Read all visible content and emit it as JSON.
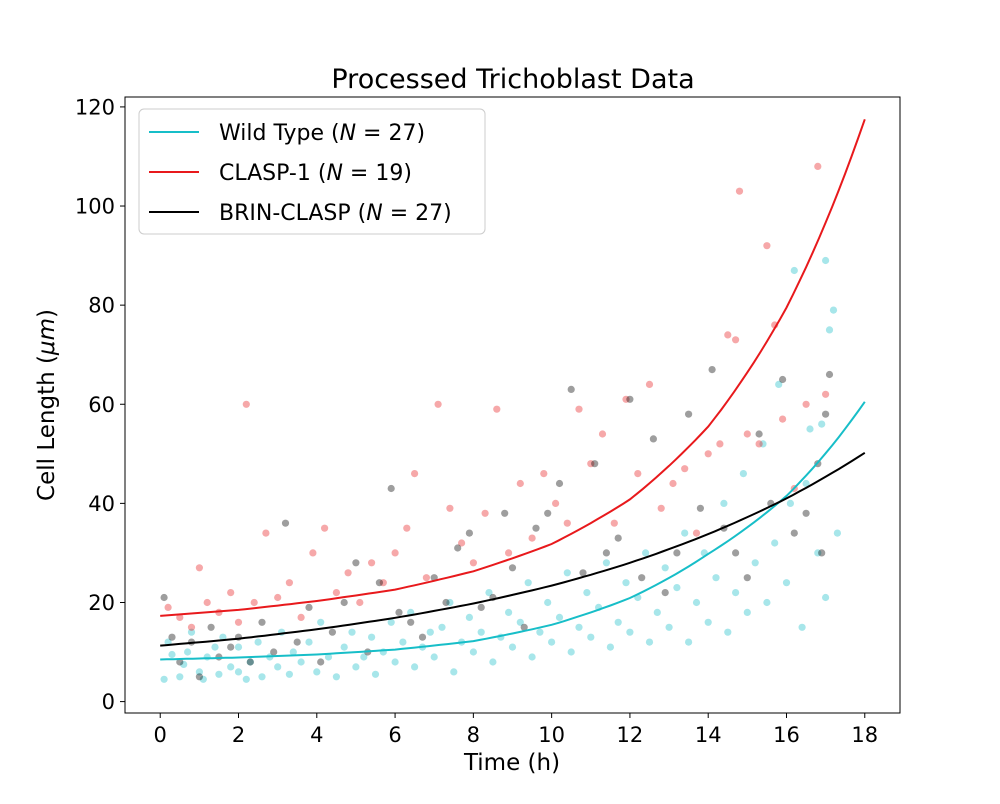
{
  "chart_data": {
    "type": "scatter",
    "title": "Processed Trichoblast Data",
    "xlabel": "Time (h)",
    "ylabel_prefix": "Cell Length (",
    "ylabel_unit": "μm",
    "ylabel_suffix": ")",
    "xlim": [
      -0.9,
      18.9
    ],
    "ylim": [
      -2.3,
      122.0
    ],
    "xticks": [
      0,
      2,
      4,
      6,
      8,
      10,
      12,
      14,
      16,
      18
    ],
    "yticks": [
      0,
      20,
      40,
      60,
      80,
      100,
      120
    ],
    "grid": false,
    "legend_position": "top-left",
    "fit_curves": [
      {
        "name_prefix": "Wild Type (",
        "name_var": "N",
        "name_eq": " = 27)",
        "color": "#17bec8",
        "model": "exponential",
        "x": [
          0,
          2,
          4,
          6,
          8,
          10,
          12,
          14,
          16,
          18
        ],
        "y": [
          8.5,
          8.9,
          9.5,
          10.5,
          12.2,
          15.5,
          20.9,
          29.8,
          41.5,
          60.5
        ]
      },
      {
        "name_prefix": "CLASP-1 (",
        "name_var": "N",
        "name_eq": " = 19)",
        "color": "#e8191c",
        "model": "exponential",
        "x": [
          0,
          2,
          4,
          6,
          8,
          10,
          12,
          14,
          16,
          18
        ],
        "y": [
          17.3,
          18.5,
          20.3,
          22.6,
          26.3,
          31.8,
          40.8,
          55.5,
          79.5,
          117.5
        ]
      },
      {
        "name_prefix": "BRIN-CLASP (",
        "name_var": "N",
        "name_eq": " = 27)",
        "color": "#000000",
        "model": "exponential",
        "x": [
          0,
          2,
          4,
          6,
          8,
          10,
          12,
          14,
          16,
          18
        ],
        "y": [
          11.3,
          12.7,
          14.6,
          16.9,
          19.8,
          23.4,
          28.0,
          33.8,
          41.0,
          50.2
        ]
      }
    ],
    "scatter_series": [
      {
        "group": "Wild Type",
        "color": "#17bec8",
        "points": [
          [
            0.1,
            4.5
          ],
          [
            0.2,
            12
          ],
          [
            0.3,
            9.5
          ],
          [
            0.5,
            5
          ],
          [
            0.6,
            7.5
          ],
          [
            0.7,
            10
          ],
          [
            0.8,
            14
          ],
          [
            1,
            6
          ],
          [
            1.1,
            4.5
          ],
          [
            1.2,
            9
          ],
          [
            1.4,
            11
          ],
          [
            1.5,
            5.5
          ],
          [
            1.6,
            13
          ],
          [
            1.8,
            7
          ],
          [
            2,
            6
          ],
          [
            2,
            11
          ],
          [
            2.2,
            4.5
          ],
          [
            2.3,
            8
          ],
          [
            2.5,
            12
          ],
          [
            2.6,
            5
          ],
          [
            2.8,
            9
          ],
          [
            3,
            7
          ],
          [
            3.1,
            14
          ],
          [
            3.3,
            5.5
          ],
          [
            3.4,
            10
          ],
          [
            3.6,
            8
          ],
          [
            3.8,
            12
          ],
          [
            4,
            6
          ],
          [
            4.1,
            16
          ],
          [
            4.3,
            9
          ],
          [
            4.5,
            5
          ],
          [
            4.7,
            11
          ],
          [
            4.9,
            14
          ],
          [
            5,
            7
          ],
          [
            5.2,
            9
          ],
          [
            5.4,
            13
          ],
          [
            5.5,
            5.5
          ],
          [
            5.7,
            10
          ],
          [
            5.9,
            16
          ],
          [
            6,
            8
          ],
          [
            6.2,
            12
          ],
          [
            6.4,
            18
          ],
          [
            6.5,
            7
          ],
          [
            6.7,
            11
          ],
          [
            6.9,
            14
          ],
          [
            7,
            9
          ],
          [
            7.2,
            15
          ],
          [
            7.4,
            20
          ],
          [
            7.5,
            6
          ],
          [
            7.7,
            12
          ],
          [
            7.9,
            17
          ],
          [
            8,
            10
          ],
          [
            8.2,
            14
          ],
          [
            8.4,
            22
          ],
          [
            8.5,
            8
          ],
          [
            8.7,
            13
          ],
          [
            8.9,
            18
          ],
          [
            9,
            11
          ],
          [
            9.2,
            16
          ],
          [
            9.4,
            24
          ],
          [
            9.5,
            9
          ],
          [
            9.7,
            14
          ],
          [
            9.9,
            20
          ],
          [
            10,
            12
          ],
          [
            10.2,
            17
          ],
          [
            10.4,
            26
          ],
          [
            10.5,
            10
          ],
          [
            10.7,
            15
          ],
          [
            10.9,
            22
          ],
          [
            11,
            13
          ],
          [
            11.2,
            19
          ],
          [
            11.4,
            28
          ],
          [
            11.5,
            11
          ],
          [
            11.7,
            16
          ],
          [
            11.9,
            24
          ],
          [
            12,
            14
          ],
          [
            12.2,
            21
          ],
          [
            12.4,
            30
          ],
          [
            12.5,
            12
          ],
          [
            12.7,
            18
          ],
          [
            12.9,
            27
          ],
          [
            13,
            15
          ],
          [
            13.2,
            23
          ],
          [
            13.4,
            34
          ],
          [
            13.5,
            12
          ],
          [
            13.7,
            20
          ],
          [
            13.9,
            30
          ],
          [
            14,
            16
          ],
          [
            14.2,
            25
          ],
          [
            14.4,
            40
          ],
          [
            14.5,
            14
          ],
          [
            14.7,
            22
          ],
          [
            14.9,
            46
          ],
          [
            15,
            18
          ],
          [
            15.2,
            28
          ],
          [
            15.4,
            52
          ],
          [
            15.5,
            20
          ],
          [
            15.7,
            32
          ],
          [
            15.8,
            64
          ],
          [
            16,
            24
          ],
          [
            16.1,
            40
          ],
          [
            16.2,
            87
          ],
          [
            16.4,
            15
          ],
          [
            16.5,
            44
          ],
          [
            16.6,
            55
          ],
          [
            16.8,
            30
          ],
          [
            16.9,
            56
          ],
          [
            17,
            89
          ],
          [
            17,
            21
          ],
          [
            17.1,
            75
          ],
          [
            17.2,
            79
          ],
          [
            17.3,
            34
          ]
        ]
      },
      {
        "group": "CLASP-1",
        "color": "#e8191c",
        "points": [
          [
            0.2,
            19
          ],
          [
            0.5,
            17
          ],
          [
            0.8,
            15
          ],
          [
            1,
            27
          ],
          [
            1.2,
            20
          ],
          [
            1.5,
            18
          ],
          [
            1.8,
            22
          ],
          [
            2,
            16
          ],
          [
            2.2,
            60
          ],
          [
            2.4,
            20
          ],
          [
            2.7,
            34
          ],
          [
            3,
            21
          ],
          [
            3.3,
            24
          ],
          [
            3.6,
            17
          ],
          [
            3.9,
            30
          ],
          [
            4.2,
            35
          ],
          [
            4.5,
            22
          ],
          [
            4.8,
            26
          ],
          [
            5.1,
            20
          ],
          [
            5.4,
            28
          ],
          [
            5.7,
            24
          ],
          [
            6,
            30
          ],
          [
            6.3,
            35
          ],
          [
            6.5,
            46
          ],
          [
            6.8,
            25
          ],
          [
            7.1,
            60
          ],
          [
            7.4,
            39
          ],
          [
            7.7,
            32
          ],
          [
            8,
            28
          ],
          [
            8.3,
            38
          ],
          [
            8.6,
            59
          ],
          [
            8.9,
            30
          ],
          [
            9.2,
            44
          ],
          [
            9.5,
            33
          ],
          [
            9.8,
            46
          ],
          [
            10.1,
            40
          ],
          [
            10.4,
            36
          ],
          [
            10.7,
            59
          ],
          [
            11,
            48
          ],
          [
            11.3,
            54
          ],
          [
            11.6,
            36
          ],
          [
            11.9,
            61
          ],
          [
            12.2,
            46
          ],
          [
            12.5,
            64
          ],
          [
            12.8,
            39
          ],
          [
            13.1,
            44
          ],
          [
            13.4,
            47
          ],
          [
            13.7,
            34
          ],
          [
            14,
            50
          ],
          [
            14.3,
            52
          ],
          [
            14.5,
            74
          ],
          [
            14.7,
            73
          ],
          [
            14.8,
            103
          ],
          [
            15,
            54
          ],
          [
            15.3,
            52
          ],
          [
            15.5,
            92
          ],
          [
            15.7,
            76
          ],
          [
            15.9,
            57
          ],
          [
            16.2,
            43
          ],
          [
            16.5,
            60
          ],
          [
            16.8,
            108
          ],
          [
            17,
            62
          ]
        ]
      },
      {
        "group": "BRIN-CLASP",
        "color": "#000000",
        "points": [
          [
            0.1,
            21
          ],
          [
            0.3,
            13
          ],
          [
            0.5,
            8
          ],
          [
            0.8,
            12
          ],
          [
            1,
            5
          ],
          [
            1.3,
            15
          ],
          [
            1.5,
            9
          ],
          [
            1.8,
            11
          ],
          [
            2,
            13
          ],
          [
            2.3,
            8
          ],
          [
            2.6,
            16
          ],
          [
            2.9,
            10
          ],
          [
            3.2,
            36
          ],
          [
            3.5,
            12
          ],
          [
            3.8,
            19
          ],
          [
            4.1,
            8
          ],
          [
            4.4,
            14
          ],
          [
            4.7,
            20
          ],
          [
            5,
            28
          ],
          [
            5.3,
            10
          ],
          [
            5.6,
            24
          ],
          [
            5.9,
            43
          ],
          [
            6.1,
            18
          ],
          [
            6.4,
            16
          ],
          [
            6.7,
            13
          ],
          [
            7,
            25
          ],
          [
            7.3,
            20
          ],
          [
            7.6,
            31
          ],
          [
            7.9,
            34
          ],
          [
            8.2,
            19
          ],
          [
            8.5,
            21
          ],
          [
            8.8,
            38
          ],
          [
            9,
            27
          ],
          [
            9.3,
            15
          ],
          [
            9.6,
            35
          ],
          [
            9.9,
            38
          ],
          [
            10.2,
            44
          ],
          [
            10.5,
            63
          ],
          [
            10.8,
            26
          ],
          [
            11.1,
            48
          ],
          [
            11.4,
            30
          ],
          [
            11.7,
            33
          ],
          [
            12,
            61
          ],
          [
            12.3,
            25
          ],
          [
            12.6,
            53
          ],
          [
            12.9,
            22
          ],
          [
            13.2,
            30
          ],
          [
            13.5,
            58
          ],
          [
            13.8,
            39
          ],
          [
            14.1,
            67
          ],
          [
            14.4,
            35
          ],
          [
            14.7,
            30
          ],
          [
            15,
            25
          ],
          [
            15.3,
            54
          ],
          [
            15.6,
            40
          ],
          [
            15.9,
            65
          ],
          [
            16.2,
            34
          ],
          [
            16.5,
            38
          ],
          [
            16.8,
            48
          ],
          [
            17,
            58
          ],
          [
            17.1,
            66
          ],
          [
            16.9,
            30
          ]
        ]
      }
    ]
  }
}
